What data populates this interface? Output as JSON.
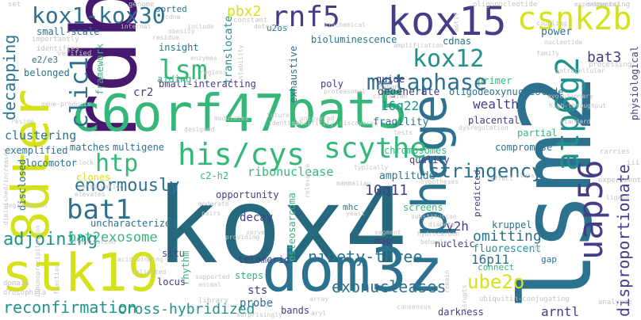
{
  "title": "Word cloud",
  "palette": {
    "purple": "#46196e",
    "indigo": "#433e85",
    "blue": "#2c728e",
    "teal": "#21918c",
    "green": "#35b779",
    "lime": "#7ad151",
    "yellow": "#d5e21a",
    "darkteal": "#26697f",
    "lightgray": "#c4c4c4"
  },
  "words": [
    {
      "text": "kox4",
      "color": "#26697f"
    },
    {
      "text": "rdbp",
      "color": "#46196e"
    },
    {
      "text": "lsm2",
      "color": "#2c728e"
    },
    {
      "text": "8dter",
      "color": "#d5e21a"
    },
    {
      "text": "stk19",
      "color": "#d5e21a"
    },
    {
      "text": "dom3z",
      "color": "#2c728e"
    },
    {
      "text": "c6orf47",
      "color": "#35b779"
    },
    {
      "text": "bat5",
      "color": "#35b779"
    },
    {
      "text": "kox15",
      "color": "#433e85"
    },
    {
      "text": "phage",
      "color": "#2c728e"
    },
    {
      "text": "uap56",
      "color": "#433e85"
    },
    {
      "text": "atp6g2",
      "color": "#21918c"
    },
    {
      "text": "csnk2b",
      "color": "#d5e21a"
    },
    {
      "text": "rnf5",
      "color": "#433e85"
    },
    {
      "text": "kox1-kox30",
      "color": "#2c728e"
    },
    {
      "text": "his/cys",
      "color": "#35b779"
    },
    {
      "text": "scythe",
      "color": "#35b779"
    },
    {
      "text": "kox12",
      "color": "#21918c"
    },
    {
      "text": "metaphase",
      "color": "#2c728e"
    },
    {
      "text": "clic1",
      "color": "#2c728e"
    },
    {
      "text": "bat1",
      "color": "#2c728e"
    },
    {
      "text": "htp",
      "color": "#35b779"
    },
    {
      "text": "lsm",
      "color": "#35b779"
    },
    {
      "text": "enormously",
      "color": "#2c728e"
    },
    {
      "text": "ube2o",
      "color": "#d5e21a"
    },
    {
      "text": "exonucleases",
      "color": "#2c728e"
    },
    {
      "text": "reconfirmation",
      "color": "#21918c"
    },
    {
      "text": "bat2exosome",
      "color": "#35b779"
    },
    {
      "text": "adjoining",
      "color": "#21918c"
    },
    {
      "text": "stringency",
      "color": "#2c728e"
    },
    {
      "text": "ninety-three",
      "color": "#2c728e"
    },
    {
      "text": "cross-hybridized",
      "color": "#21918c"
    },
    {
      "text": "decapping",
      "color": "#2c728e"
    },
    {
      "text": "disproportionate",
      "color": "#433e85"
    },
    {
      "text": "omitting",
      "color": "#2c728e"
    },
    {
      "text": "y2h",
      "color": "#433e85"
    },
    {
      "text": "arntl",
      "color": "#433e85"
    },
    {
      "text": "bat3",
      "color": "#433e85"
    },
    {
      "text": "pbx2",
      "color": "#d5e21a"
    },
    {
      "text": "bioluminescence",
      "color": "#2c728e"
    },
    {
      "text": "translocate",
      "color": "#21918c"
    },
    {
      "text": "wealth",
      "color": "#433e85"
    },
    {
      "text": "16q22",
      "color": "#21918c"
    },
    {
      "text": "10q11",
      "color": "#433e85"
    },
    {
      "text": "16p11",
      "color": "#2c728e"
    },
    {
      "text": "ribonuclease",
      "color": "#35b779"
    },
    {
      "text": "amplitude",
      "color": "#2c728e"
    },
    {
      "text": "clustering",
      "color": "#2c728e"
    },
    {
      "text": "degenerate",
      "color": "#433e85"
    },
    {
      "text": "oligodeoxynucleotide",
      "color": "#2c728e"
    },
    {
      "text": "fragility",
      "color": "#2c728e"
    },
    {
      "text": "placental",
      "color": "#433e85"
    },
    {
      "text": "cr2",
      "color": "#433e85"
    },
    {
      "text": "bmal1-interacting",
      "color": "#433e85"
    },
    {
      "text": "c2-h2",
      "color": "#35b779"
    },
    {
      "text": "multigene",
      "color": "#2c728e"
    },
    {
      "text": "matches",
      "color": "#2c728e"
    },
    {
      "text": "exemplified",
      "color": "#2c728e"
    },
    {
      "text": "locomotor",
      "color": "#2c728e"
    },
    {
      "text": "uncharacterized",
      "color": "#2c728e"
    },
    {
      "text": "chromosomes",
      "color": "#35b779"
    },
    {
      "text": "quality",
      "color": "#433e85"
    },
    {
      "text": "compromise",
      "color": "#2c728e"
    },
    {
      "text": "fluorescent",
      "color": "#21918c"
    },
    {
      "text": "nucleic",
      "color": "#433e85"
    },
    {
      "text": "kruppel",
      "color": "#2c728e"
    },
    {
      "text": "sts",
      "color": "#433e85"
    },
    {
      "text": "probe",
      "color": "#2c728e"
    },
    {
      "text": "telomeric",
      "color": "#433e85"
    },
    {
      "text": "decay",
      "color": "#433e85"
    },
    {
      "text": "opportunity",
      "color": "#433e85"
    },
    {
      "text": "power",
      "color": "#2c728e"
    },
    {
      "text": "cdnas",
      "color": "#2c728e"
    },
    {
      "text": "insight",
      "color": "#2c728e"
    },
    {
      "text": "small-scale",
      "color": "#2c728e"
    },
    {
      "text": "guide",
      "color": "#433e85"
    },
    {
      "text": "primer",
      "color": "#35b779"
    },
    {
      "text": "belonged",
      "color": "#2c728e"
    },
    {
      "text": "framework",
      "color": "#35b779"
    },
    {
      "text": "aiding",
      "color": "#35b779"
    },
    {
      "text": "poly",
      "color": "#433e85"
    },
    {
      "text": "exhaustive",
      "color": "#2c728e"
    },
    {
      "text": "partial",
      "color": "#35b779"
    },
    {
      "text": "gap",
      "color": "#2c728e"
    },
    {
      "text": "connect",
      "color": "#35b779"
    },
    {
      "text": "situ",
      "color": "#433e85"
    },
    {
      "text": "locus",
      "color": "#433e85"
    },
    {
      "text": "rhythm",
      "color": "#35b779"
    },
    {
      "text": "steps",
      "color": "#35b779"
    },
    {
      "text": "bands",
      "color": "#433e85"
    },
    {
      "text": "darkness",
      "color": "#433e85"
    },
    {
      "text": "mhc",
      "color": "#2c728e"
    },
    {
      "text": "osteosarcoma",
      "color": "#35b779"
    },
    {
      "text": "map",
      "color": "#433e85"
    },
    {
      "text": "screens",
      "color": "#35b779"
    },
    {
      "text": "predicted",
      "color": "#433e85"
    },
    {
      "text": "clones",
      "color": "#d5e21a"
    },
    {
      "text": "disclosed",
      "color": "#2c728e"
    },
    {
      "text": "physiological",
      "color": "#433e85"
    },
    {
      "text": "u2os",
      "color": "#2c728e"
    },
    {
      "text": "sorted",
      "color": "#2c728e"
    },
    {
      "text": "e2/e3",
      "color": "#2c728e"
    },
    {
      "text": "set",
      "color": "#c4c4c4"
    },
    {
      "text": "genome",
      "color": "#c4c4c4"
    },
    {
      "text": "verified",
      "color": "#c4c4c4"
    },
    {
      "text": "importantly",
      "color": "#c4c4c4"
    },
    {
      "text": "identifies",
      "color": "#c4c4c4"
    },
    {
      "text": "gene-products",
      "color": "#c4c4c4"
    },
    {
      "text": "diminished/increased",
      "color": "#c4c4c4"
    },
    {
      "text": "degradation",
      "color": "#c4c4c4"
    },
    {
      "text": "immunoprecipitation",
      "color": "#c4c4c4"
    },
    {
      "text": "drosophila",
      "color": "#c4c4c4"
    },
    {
      "text": "domain",
      "color": "#c4c4c4"
    },
    {
      "text": "sequencing",
      "color": "#c4c4c4"
    },
    {
      "text": "oligonucleotide",
      "color": "#c4c4c4"
    },
    {
      "text": "processing",
      "color": "#c4c4c4"
    },
    {
      "text": "ubiquitin-conjugating",
      "color": "#c4c4c4"
    },
    {
      "text": "analyses",
      "color": "#c4c4c4"
    },
    {
      "text": "experiment",
      "color": "#c4c4c4"
    },
    {
      "text": "experimental",
      "color": "#c4c4c4"
    },
    {
      "text": "carries",
      "color": "#c4c4c4"
    },
    {
      "text": "iii",
      "color": "#c4c4c4"
    },
    {
      "text": "library",
      "color": "#c4c4c4"
    },
    {
      "text": "surprisingly",
      "color": "#c4c4c4"
    },
    {
      "text": "consensus",
      "color": "#c4c4c4"
    },
    {
      "text": "circadian",
      "color": "#c4c4c4"
    },
    {
      "text": "proteasomal",
      "color": "#c4c4c4"
    },
    {
      "text": "biochemical",
      "color": "#c4c4c4"
    },
    {
      "text": "detection",
      "color": "#c4c4c4"
    },
    {
      "text": "internal",
      "color": "#c4c4c4"
    },
    {
      "text": "include",
      "color": "#c4c4c4"
    },
    {
      "text": "enzymes",
      "color": "#c4c4c4"
    },
    {
      "text": "regions",
      "color": "#c4c4c4"
    },
    {
      "text": "obesity",
      "color": "#c4c4c4"
    },
    {
      "text": "residue",
      "color": "#c4c4c4"
    },
    {
      "text": "cdna",
      "color": "#c4c4c4"
    },
    {
      "text": "constant",
      "color": "#c4c4c4"
    },
    {
      "text": "stability",
      "color": "#c4c4c4"
    },
    {
      "text": "future",
      "color": "#c4c4c4"
    },
    {
      "text": "modulates",
      "color": "#c4c4c4"
    },
    {
      "text": "uncovered",
      "color": "#c4c4c4"
    },
    {
      "text": "identical",
      "color": "#c4c4c4"
    },
    {
      "text": "specificity",
      "color": "#c4c4c4"
    },
    {
      "text": "discovered",
      "color": "#c4c4c4"
    },
    {
      "text": "typically",
      "color": "#c4c4c4"
    },
    {
      "text": "tests",
      "color": "#c4c4c4"
    },
    {
      "text": "mammalian",
      "color": "#c4c4c4"
    },
    {
      "text": "relevance",
      "color": "#c4c4c4"
    },
    {
      "text": "yeast",
      "color": "#c4c4c4"
    },
    {
      "text": "hypotheses",
      "color": "#c4c4c4"
    },
    {
      "text": "affect",
      "color": "#c4c4c4"
    },
    {
      "text": "class",
      "color": "#c4c4c4"
    },
    {
      "text": "substitution",
      "color": "#c4c4c4"
    },
    {
      "text": "diabetes",
      "color": "#c4c4c4"
    },
    {
      "text": "hydrocarbon",
      "color": "#c4c4c4"
    },
    {
      "text": "behavior",
      "color": "#c4c4c4"
    },
    {
      "text": "segment",
      "color": "#c4c4c4"
    },
    {
      "text": "remain",
      "color": "#c4c4c4"
    },
    {
      "text": "disrupts",
      "color": "#c4c4c4"
    },
    {
      "text": "moderate",
      "color": "#c4c4c4"
    },
    {
      "text": "pairs",
      "color": "#c4c4c4"
    },
    {
      "text": "serve",
      "color": "#c4c4c4"
    },
    {
      "text": "providing",
      "color": "#c4c4c4"
    },
    {
      "text": "supported",
      "color": "#c4c4c4"
    },
    {
      "text": "animal",
      "color": "#c4c4c4"
    },
    {
      "text": "validated",
      "color": "#c4c4c4"
    },
    {
      "text": "fraction",
      "color": "#c4c4c4"
    },
    {
      "text": "organization",
      "color": "#c4c4c4"
    },
    {
      "text": "acid-binding",
      "color": "#c4c4c4"
    },
    {
      "text": "conservation",
      "color": "#c4c4c4"
    },
    {
      "text": "elevates",
      "color": "#c4c4c4"
    },
    {
      "text": "clock",
      "color": "#c4c4c4"
    },
    {
      "text": "reside",
      "color": "#c4c4c4"
    },
    {
      "text": "designed",
      "color": "#c4c4c4"
    },
    {
      "text": "coupling",
      "color": "#c4c4c4"
    },
    {
      "text": "family",
      "color": "#c4c4c4"
    },
    {
      "text": "nucleotide",
      "color": "#c4c4c4"
    },
    {
      "text": "high-throughput",
      "color": "#c4c4c4"
    },
    {
      "text": "evolutionary",
      "color": "#c4c4c4"
    },
    {
      "text": "intracellular",
      "color": "#c4c4c4"
    },
    {
      "text": "standard",
      "color": "#c4c4c4"
    },
    {
      "text": "dysregulation",
      "color": "#c4c4c4"
    },
    {
      "text": "amplification",
      "color": "#c4c4c4"
    },
    {
      "text": "human",
      "color": "#c4c4c4"
    },
    {
      "text": "motif",
      "color": "#c4c4c4"
    },
    {
      "text": "sink",
      "color": "#c4c4c4"
    },
    {
      "text": "ligand",
      "color": "#c4c4c4"
    },
    {
      "text": "array",
      "color": "#c4c4c4"
    },
    {
      "text": "aryl",
      "color": "#c4c4c4"
    }
  ]
}
